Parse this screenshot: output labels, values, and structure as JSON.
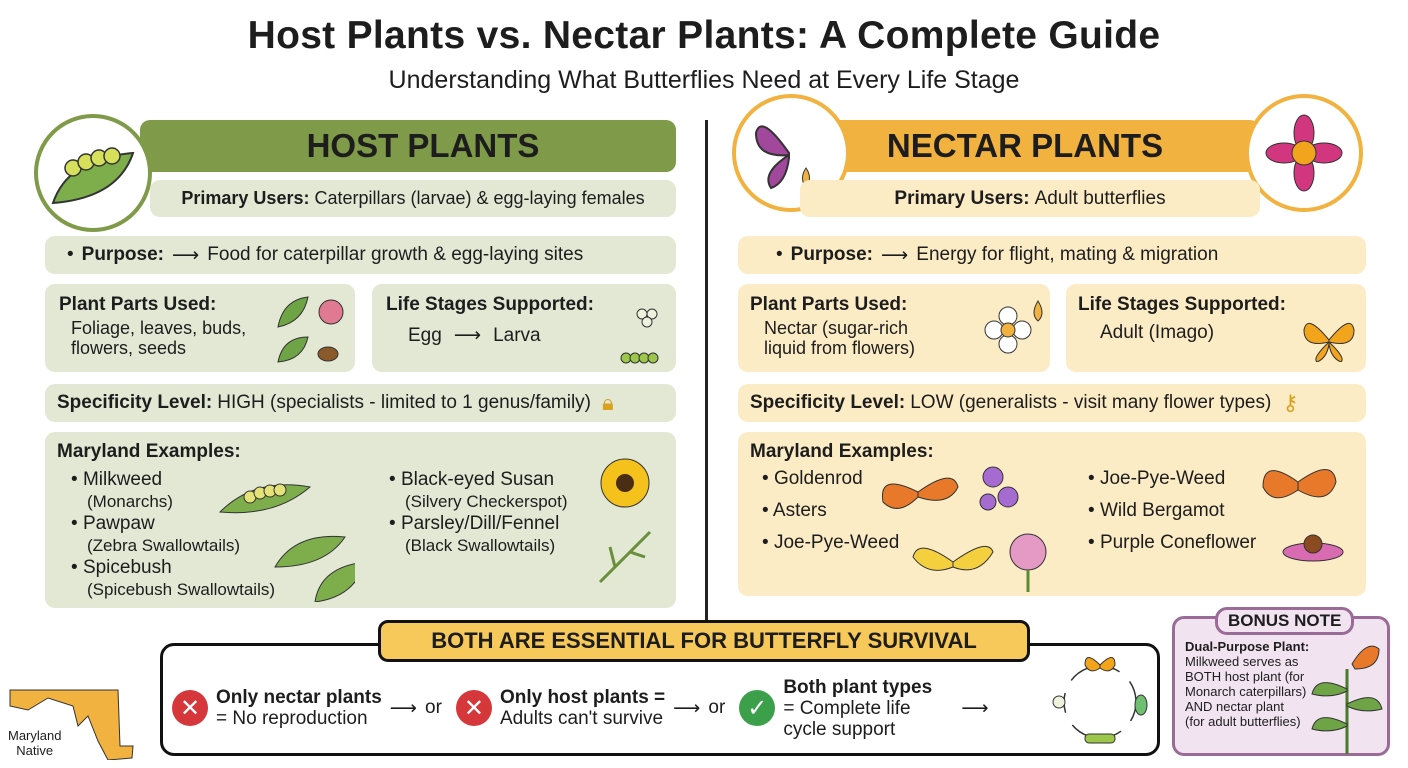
{
  "title": "Host Plants vs. Nectar Plants: A Complete Guide",
  "subtitle": "Understanding What Butterflies Need at Every Life Stage",
  "colors": {
    "host": "#7f9a48",
    "host_bg": "#e3e8d5",
    "nectar": "#f2b23f",
    "nectar_bg": "#fcecc6",
    "bonus": "#9b6b98"
  },
  "host": {
    "header": "HOST PLANTS",
    "icon": "caterpillar-on-leaf-icon",
    "primary_label": "Primary Users:",
    "primary_value": "Caterpillars (larvae) & egg-laying females",
    "purpose_label": "Purpose:",
    "purpose_value": "Food for caterpillar growth & egg-laying sites",
    "parts_label": "Plant Parts Used:",
    "parts_value": "Foliage, leaves, buds, flowers, seeds",
    "stages_label": "Life Stages Supported:",
    "stage_from": "Egg",
    "stage_to": "Larva",
    "spec_label": "Specificity Level:",
    "spec_value": "HIGH (specialists - limited to 1 genus/family)",
    "examples_label": "Maryland Examples:",
    "examples_left": [
      {
        "name": "Milkweed",
        "note": "(Monarchs)"
      },
      {
        "name": "Pawpaw",
        "note": "(Zebra Swallowtails)"
      },
      {
        "name": "Spicebush",
        "note": "(Spicebush Swallowtails)"
      }
    ],
    "examples_right": [
      {
        "name": "Black-eyed Susan",
        "note": "(Silvery Checkerspot)"
      },
      {
        "name": "Parsley/Dill/Fennel",
        "note": "(Black Swallowtails)"
      }
    ]
  },
  "nectar": {
    "header": "NECTAR PLANTS",
    "primary_label": "Primary Users:",
    "primary_value": "Adult butterflies",
    "purpose_label": "Purpose:",
    "purpose_value": "Energy for flight, mating & migration",
    "parts_label": "Plant Parts Used:",
    "parts_value": "Nectar (sugar-rich liquid from flowers)",
    "stages_label": "Life Stages Supported:",
    "stage_value": "Adult (Imago)",
    "spec_label": "Specificity Level:",
    "spec_value": "LOW (generalists - visit many flower types)",
    "examples_label": "Maryland Examples:",
    "examples_left": [
      "Goldenrod",
      "Asters",
      "Joe-Pye-Weed"
    ],
    "examples_right": [
      "Joe-Pye-Weed",
      "Wild Bergamot",
      "Purple Coneflower"
    ]
  },
  "bottom": {
    "banner": "BOTH ARE ESSENTIAL FOR BUTTERFLY SURVIVAL",
    "item1_title": "Only nectar plants",
    "item1_text": "= No reproduction",
    "or": "or",
    "item2_title": "Only host plants =",
    "item2_text": "Adults can't survive",
    "item3_title": "Both plant types",
    "item3_text": "= Complete life cycle support"
  },
  "badge": {
    "text1": "Maryland",
    "text2": "Native"
  },
  "bonus": {
    "label": "BONUS NOTE",
    "title": "Dual-Purpose Plant:",
    "text": "Milkweed serves as BOTH host plant (for Monarch caterpillars) AND nectar plant (for adult butterflies)"
  }
}
